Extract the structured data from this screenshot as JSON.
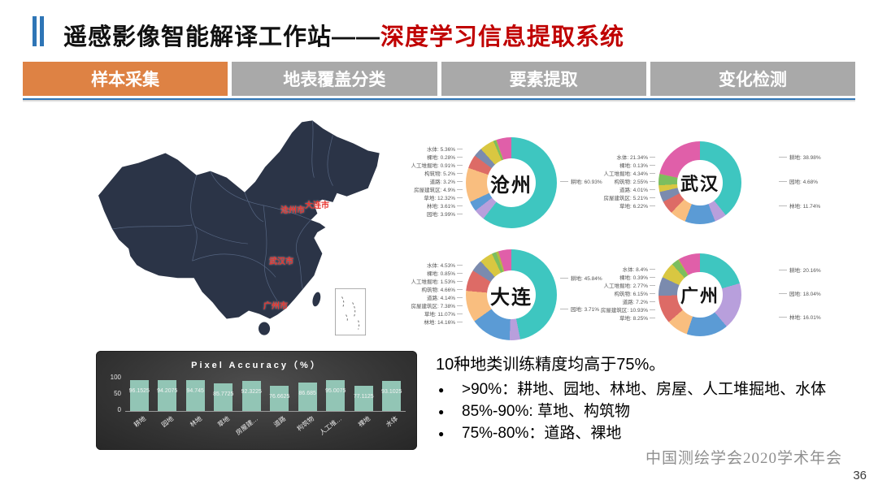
{
  "header": {
    "title_black": "遥感影像智能解译工作站——",
    "title_red": "深度学习信息提取系统"
  },
  "tabs": [
    {
      "label": "样本采集",
      "active": true
    },
    {
      "label": "地表覆盖分类",
      "active": false
    },
    {
      "label": "要素提取",
      "active": false
    },
    {
      "label": "变化检测",
      "active": false
    }
  ],
  "map": {
    "cities": [
      {
        "label": "沧州市"
      },
      {
        "label": "大连市"
      },
      {
        "label": "武汉市"
      },
      {
        "label": "广州市"
      }
    ]
  },
  "theme": {
    "accent_orange": "#DE8244",
    "tab_gray": "#A9A9A9",
    "title_red": "#C00000",
    "accent_blue": "#2E75B6",
    "map_fill": "#2B3447",
    "city_label_red": "#E8342E",
    "bar_fill": "#92C5B5"
  },
  "chart_data": [
    {
      "type": "pie",
      "city": "沧州",
      "categories": [
        "耕地",
        "园地",
        "林地",
        "草地",
        "房屋建筑区",
        "道路",
        "构筑物",
        "人工堆掘地",
        "裸地",
        "水体"
      ],
      "values": [
        60.93,
        3.99,
        3.61,
        12.32,
        4.9,
        3.2,
        5.2,
        0.91,
        0.28,
        5.36
      ],
      "colors": [
        "#3EC6C0",
        "#B89FDC",
        "#5B9BD5",
        "#F9BE7F",
        "#DD6B66",
        "#7B8BAE",
        "#D9C741",
        "#7CBE5F",
        "#B5B945",
        "#E05FA9"
      ],
      "left_labels": [
        "水体",
        "裸地",
        "人工堆掘地",
        "构筑物",
        "道路",
        "房屋建筑区",
        "草地",
        "林地",
        "园地"
      ],
      "right_labels": [
        "耕地"
      ],
      "legend_position": "callout"
    },
    {
      "type": "pie",
      "city": "武汉",
      "categories": [
        "耕地",
        "园地",
        "林地",
        "草地",
        "房屋建筑区",
        "道路",
        "构筑物",
        "人工堆掘地",
        "裸地",
        "水体"
      ],
      "values": [
        38.98,
        4.68,
        11.74,
        6.22,
        5.21,
        4.01,
        2.55,
        4.34,
        0.13,
        21.34
      ],
      "colors": [
        "#3EC6C0",
        "#B89FDC",
        "#5B9BD5",
        "#F9BE7F",
        "#DD6B66",
        "#7B8BAE",
        "#D9C741",
        "#7CBE5F",
        "#B5B945",
        "#E05FA9"
      ],
      "left_labels": [
        "水体",
        "裸地",
        "人工堆掘地",
        "构筑物",
        "道路",
        "房屋建筑区",
        "草地"
      ],
      "right_labels": [
        "耕地",
        "园地",
        "林地"
      ],
      "legend_position": "callout"
    },
    {
      "type": "pie",
      "city": "大连",
      "categories": [
        "耕地",
        "园地",
        "林地",
        "草地",
        "房屋建筑区",
        "道路",
        "构筑物",
        "人工堆掘地",
        "裸地",
        "水体"
      ],
      "values": [
        45.84,
        3.71,
        14.16,
        11.07,
        7.38,
        4.14,
        4.66,
        1.53,
        0.85,
        4.53
      ],
      "colors": [
        "#3EC6C0",
        "#B89FDC",
        "#5B9BD5",
        "#F9BE7F",
        "#DD6B66",
        "#7B8BAE",
        "#D9C741",
        "#7CBE5F",
        "#B5B945",
        "#E05FA9"
      ],
      "left_labels": [
        "水体",
        "裸地",
        "人工堆掘地",
        "构筑物",
        "道路",
        "房屋建筑区",
        "草地",
        "林地"
      ],
      "right_labels": [
        "耕地",
        "园地"
      ],
      "legend_position": "callout"
    },
    {
      "type": "pie",
      "city": "广州",
      "categories": [
        "耕地",
        "园地",
        "林地",
        "草地",
        "房屋建筑区",
        "道路",
        "构筑物",
        "人工堆掘地",
        "裸地",
        "水体"
      ],
      "values": [
        20.16,
        18.04,
        16.01,
        8.25,
        10.93,
        7.2,
        6.15,
        2.77,
        0.39,
        8.4
      ],
      "colors": [
        "#3EC6C0",
        "#B89FDC",
        "#5B9BD5",
        "#F9BE7F",
        "#DD6B66",
        "#7B8BAE",
        "#D9C741",
        "#7CBE5F",
        "#B5B945",
        "#E05FA9"
      ],
      "left_labels": [
        "水体",
        "裸地",
        "人工堆掘地",
        "构筑物",
        "道路",
        "房屋建筑区",
        "草地"
      ],
      "right_labels": [
        "耕地",
        "园地",
        "林地"
      ],
      "legend_position": "callout"
    },
    {
      "type": "bar",
      "title": "Pixel Accuracy（%）",
      "categories": [
        "耕地",
        "园地",
        "林地",
        "草地",
        "房屋建…",
        "道路",
        "构筑物",
        "人工堆…",
        "裸地",
        "水体"
      ],
      "values": [
        96.1525,
        94.2075,
        94.745,
        85.7725,
        92.3225,
        76.6625,
        86.685,
        95.0075,
        77.1125,
        93.1025
      ],
      "ylim": [
        0,
        100
      ],
      "yticks": [
        0,
        50,
        100
      ],
      "xlabel": "",
      "ylabel": "",
      "grid": false,
      "legend_position": "none"
    }
  ],
  "notes": {
    "title": "10种地类训练精度均高于75%。",
    "bullets": [
      ">90%：耕地、园地、林地、房屋、人工堆掘地、水体",
      "85%-90%: 草地、构筑物",
      "75%-80%：道路、裸地"
    ]
  },
  "footer": {
    "conference": "中国测绘学会2020学术年会",
    "page": "36"
  }
}
